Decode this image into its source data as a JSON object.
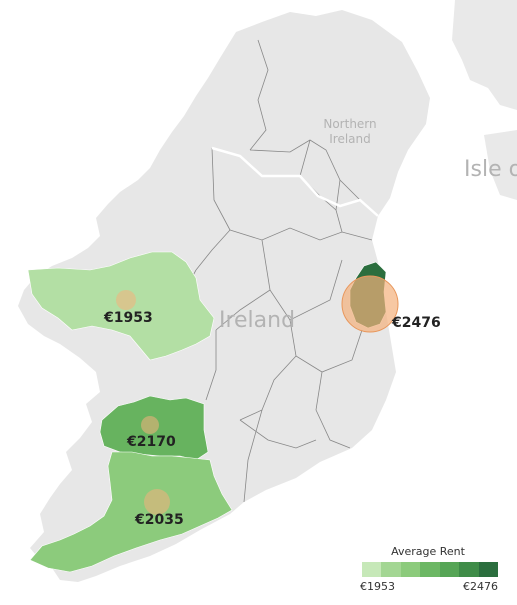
{
  "map": {
    "labels": {
      "northern_ireland_line1": "Northern",
      "northern_ireland_line2": "Ireland",
      "ireland": "Ireland",
      "isle": "Isle o"
    },
    "regions": [
      {
        "id": "galway",
        "value": 1953,
        "label": "€1953",
        "color": "#b3dfa4"
      },
      {
        "id": "limerick",
        "value": 2170,
        "label": "€2170",
        "color": "#67b35f"
      },
      {
        "id": "cork",
        "value": 2035,
        "label": "€2035",
        "color": "#8ccb7c"
      },
      {
        "id": "dublin",
        "value": 2476,
        "label": "€2476",
        "color": "#2b6e3e"
      }
    ],
    "highlight_color": "#f4b07c"
  },
  "legend": {
    "title": "Average Rent",
    "min_label": "€1953",
    "max_label": "€2476",
    "colors": [
      "#c6e8b8",
      "#a3d693",
      "#8ccb7c",
      "#6cb764",
      "#56a556",
      "#3f8c48",
      "#2b6e3e"
    ]
  }
}
